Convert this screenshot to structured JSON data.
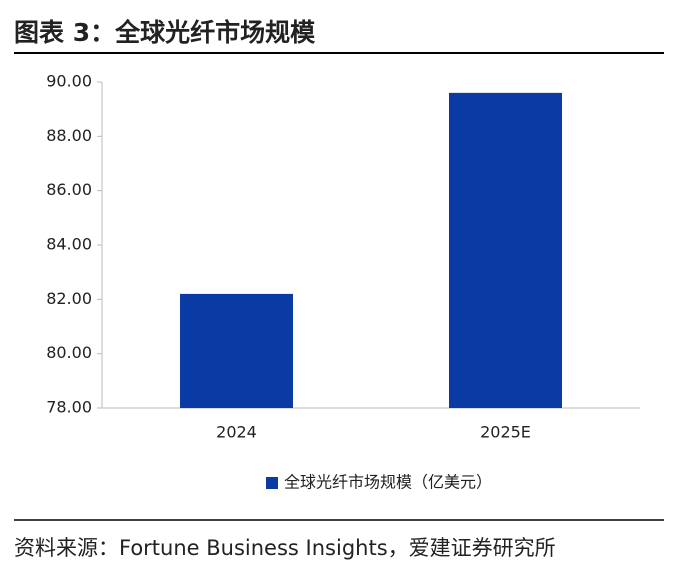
{
  "chart_data": {
    "type": "bar",
    "title": "图表 3：全球光纤市场规模",
    "categories": [
      "2024",
      "2025E"
    ],
    "series": [
      {
        "name": "全球光纤市场规模（亿美元）",
        "color": "#0a3aa3",
        "values": [
          82.2,
          89.6
        ]
      }
    ],
    "ylim": [
      78,
      90
    ],
    "yticks": [
      {
        "value": 78,
        "label": "78.00"
      },
      {
        "value": 80,
        "label": "80.00"
      },
      {
        "value": 82,
        "label": "82.00"
      },
      {
        "value": 84,
        "label": "84.00"
      },
      {
        "value": 86,
        "label": "86.00"
      },
      {
        "value": 88,
        "label": "88.00"
      },
      {
        "value": 90,
        "label": "90.00"
      }
    ],
    "grid": false,
    "legend": "bottom",
    "source": "资料来源：Fortune Business Insights，爱建证券研究所"
  }
}
